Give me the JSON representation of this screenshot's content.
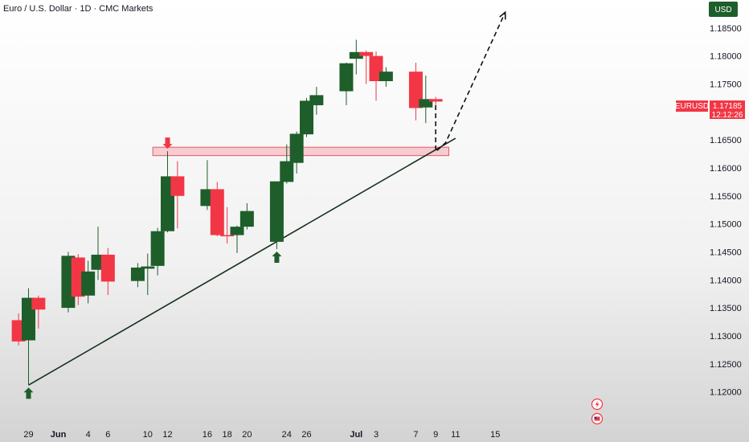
{
  "header": {
    "title": "Euro / U.S. Dollar · 1D · CMC Markets",
    "currency": "USD"
  },
  "price_label": {
    "symbol": "EURUSD",
    "price": "1.17185",
    "countdown": "12:12:26"
  },
  "colors": {
    "bull": "#1e5e2a",
    "bear": "#f23645",
    "line": "#15301c",
    "zone_fill": "#f7a8b0",
    "zone_stroke": "#e35b67",
    "projection": "#111111",
    "axis_text": "#131722",
    "badge_bg": "#1e5e2a"
  },
  "chart_data": {
    "type": "candlestick",
    "title": "Euro / U.S. Dollar · 1D · CMC Markets",
    "y_ticks": [
      "1.18500",
      "1.18000",
      "1.17500",
      "1.17000",
      "1.16500",
      "1.16000",
      "1.15500",
      "1.15000",
      "1.14500",
      "1.14000",
      "1.13500",
      "1.13000",
      "1.12500",
      "1.12000"
    ],
    "x_ticks": [
      "29",
      "Jun",
      "4",
      "6",
      "10",
      "12",
      "16",
      "18",
      "20",
      "24",
      "26",
      "Jul",
      "3",
      "7",
      "9",
      "11",
      "15"
    ],
    "ylim": [
      1.1175,
      1.19
    ],
    "candles": [
      {
        "date": "May 28",
        "open": 1.1328,
        "high": 1.134,
        "low": 1.1283,
        "close": 1.129
      },
      {
        "date": "May 29",
        "open": 1.1292,
        "high": 1.1385,
        "low": 1.1212,
        "close": 1.1368
      },
      {
        "date": "May 30",
        "open": 1.1368,
        "high": 1.1372,
        "low": 1.1313,
        "close": 1.1347
      },
      {
        "date": "Jun 2",
        "open": 1.135,
        "high": 1.145,
        "low": 1.1342,
        "close": 1.1443
      },
      {
        "date": "Jun 3",
        "open": 1.144,
        "high": 1.1446,
        "low": 1.1355,
        "close": 1.137
      },
      {
        "date": "Jun 4",
        "open": 1.1372,
        "high": 1.1434,
        "low": 1.1358,
        "close": 1.1415
      },
      {
        "date": "Jun 5",
        "open": 1.1418,
        "high": 1.1495,
        "low": 1.14,
        "close": 1.1445
      },
      {
        "date": "Jun 6",
        "open": 1.1445,
        "high": 1.1457,
        "low": 1.1373,
        "close": 1.1397
      },
      {
        "date": "Jun 9",
        "open": 1.1398,
        "high": 1.143,
        "low": 1.1387,
        "close": 1.1422
      },
      {
        "date": "Jun 10",
        "open": 1.142,
        "high": 1.1447,
        "low": 1.1373,
        "close": 1.1424
      },
      {
        "date": "Jun 11",
        "open": 1.1425,
        "high": 1.1493,
        "low": 1.1408,
        "close": 1.1487
      },
      {
        "date": "Jun 12",
        "open": 1.1487,
        "high": 1.163,
        "low": 1.1485,
        "close": 1.1585
      },
      {
        "date": "Jun 13",
        "open": 1.1585,
        "high": 1.1612,
        "low": 1.1492,
        "close": 1.155
      },
      {
        "date": "Jun 16",
        "open": 1.1532,
        "high": 1.1614,
        "low": 1.1525,
        "close": 1.1562
      },
      {
        "date": "Jun 17",
        "open": 1.1562,
        "high": 1.1575,
        "low": 1.1478,
        "close": 1.148
      },
      {
        "date": "Jun 18",
        "open": 1.148,
        "high": 1.153,
        "low": 1.1465,
        "close": 1.1479
      },
      {
        "date": "Jun 19",
        "open": 1.148,
        "high": 1.1497,
        "low": 1.1448,
        "close": 1.1495
      },
      {
        "date": "Jun 20",
        "open": 1.1495,
        "high": 1.1537,
        "low": 1.149,
        "close": 1.1523
      },
      {
        "date": "Jun 23",
        "open": 1.1468,
        "high": 1.1576,
        "low": 1.1455,
        "close": 1.1576
      },
      {
        "date": "Jun 24",
        "open": 1.1575,
        "high": 1.1642,
        "low": 1.1572,
        "close": 1.1612
      },
      {
        "date": "Jun 25",
        "open": 1.1609,
        "high": 1.1665,
        "low": 1.159,
        "close": 1.1661
      },
      {
        "date": "Jun 26",
        "open": 1.166,
        "high": 1.1725,
        "low": 1.1655,
        "close": 1.172
      },
      {
        "date": "Jun 27",
        "open": 1.1712,
        "high": 1.1745,
        "low": 1.1695,
        "close": 1.173
      },
      {
        "date": "Jun 30",
        "open": 1.1737,
        "high": 1.1788,
        "low": 1.1712,
        "close": 1.1787
      },
      {
        "date": "Jul 1",
        "open": 1.1795,
        "high": 1.1829,
        "low": 1.1767,
        "close": 1.1807
      },
      {
        "date": "Jul 2",
        "open": 1.1807,
        "high": 1.181,
        "low": 1.175,
        "close": 1.18
      },
      {
        "date": "Jul 3",
        "open": 1.18,
        "high": 1.1808,
        "low": 1.172,
        "close": 1.1755
      },
      {
        "date": "Jul 4",
        "open": 1.1755,
        "high": 1.178,
        "low": 1.1745,
        "close": 1.1772
      },
      {
        "date": "Jul 7",
        "open": 1.1772,
        "high": 1.1788,
        "low": 1.1685,
        "close": 1.1707
      },
      {
        "date": "Jul 8",
        "open": 1.1708,
        "high": 1.1765,
        "low": 1.168,
        "close": 1.1723
      },
      {
        "date": "Jul 9",
        "open": 1.1723,
        "high": 1.1727,
        "low": 1.1712,
        "close": 1.17185
      }
    ],
    "annotations": {
      "zone": {
        "from": "Jun 11",
        "to": "Jul 10",
        "low": 1.1622,
        "high": 1.1637
      },
      "trendline": [
        {
          "date": "May 29",
          "price": 1.1212
        },
        {
          "date": "Jul 11",
          "price": 1.1653
        }
      ],
      "arrows_up": [
        {
          "date": "May 29",
          "price": 1.1212
        },
        {
          "date": "Jun 23",
          "price": 1.1455
        }
      ],
      "arrows_down": [
        {
          "date": "Jun 12",
          "price": 1.163
        }
      ],
      "projection": [
        {
          "date": "Jul 9",
          "price": 1.1712
        },
        {
          "date": "Jul 9",
          "price": 1.1629
        },
        {
          "date": "Jul 10",
          "price": 1.1645
        },
        {
          "date": "Jul 16",
          "price": 1.1878
        }
      ]
    }
  }
}
